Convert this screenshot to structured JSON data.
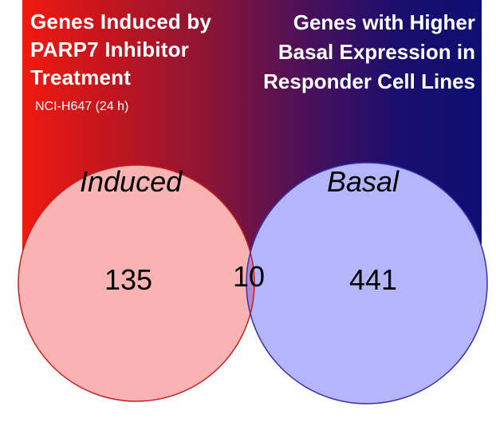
{
  "header": {
    "left_title": "Genes Induced by PARP7 Inhibitor Treatment",
    "left_subtitle": "NCI-H647 (24 h)",
    "right_title": "Genes with Higher Basal Expression in Responder Cell Lines"
  },
  "venn": {
    "left_set_label": "Induced",
    "right_set_label": "Basal",
    "left_only_count": "135",
    "overlap_count": "10",
    "right_only_count": "441"
  },
  "colors": {
    "left_circle_fill": "#f9b3b3",
    "left_circle_stroke": "#c81e1e",
    "right_circle_fill": "#b3b6fb",
    "right_circle_stroke": "#3a2fae",
    "overlap_fill": "#b08ad0",
    "banner_left": "#f01a10",
    "banner_right": "#0d0f70"
  }
}
